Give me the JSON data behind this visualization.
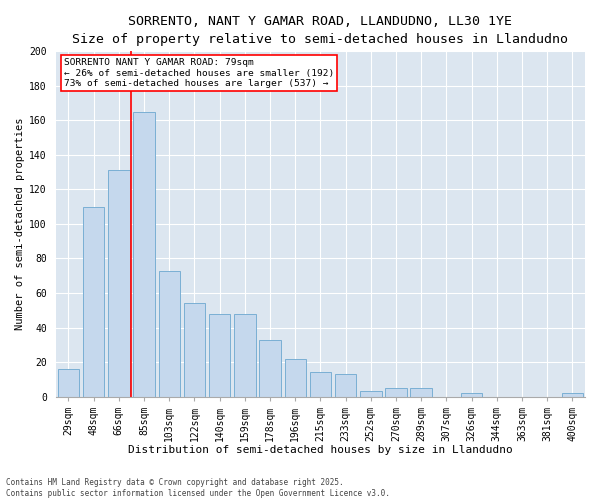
{
  "title1": "SORRENTO, NANT Y GAMAR ROAD, LLANDUDNO, LL30 1YE",
  "title2": "Size of property relative to semi-detached houses in Llandudno",
  "xlabel": "Distribution of semi-detached houses by size in Llandudno",
  "ylabel": "Number of semi-detached properties",
  "categories": [
    "29sqm",
    "48sqm",
    "66sqm",
    "85sqm",
    "103sqm",
    "122sqm",
    "140sqm",
    "159sqm",
    "178sqm",
    "196sqm",
    "215sqm",
    "233sqm",
    "252sqm",
    "270sqm",
    "289sqm",
    "307sqm",
    "326sqm",
    "344sqm",
    "363sqm",
    "381sqm",
    "400sqm"
  ],
  "values": [
    16,
    110,
    131,
    165,
    73,
    54,
    48,
    48,
    33,
    22,
    14,
    13,
    3,
    5,
    5,
    0,
    2,
    0,
    0,
    0,
    2
  ],
  "bar_color": "#c5d8ed",
  "bar_edgecolor": "#7aafd4",
  "vline_x": 3.0,
  "vline_color": "red",
  "annotation_title": "SORRENTO NANT Y GAMAR ROAD: 79sqm",
  "annotation_line1": "← 26% of semi-detached houses are smaller (192)",
  "annotation_line2": "73% of semi-detached houses are larger (537) →",
  "annotation_box_color": "white",
  "annotation_box_edgecolor": "red",
  "ylim": [
    0,
    200
  ],
  "yticks": [
    0,
    20,
    40,
    60,
    80,
    100,
    120,
    140,
    160,
    180,
    200
  ],
  "background_color": "#dce6f0",
  "footer": "Contains HM Land Registry data © Crown copyright and database right 2025.\nContains public sector information licensed under the Open Government Licence v3.0.",
  "title1_fontsize": 9.5,
  "title2_fontsize": 8.5,
  "xlabel_fontsize": 8,
  "ylabel_fontsize": 7.5,
  "tick_fontsize": 7,
  "annotation_fontsize": 6.8,
  "footer_fontsize": 5.5
}
